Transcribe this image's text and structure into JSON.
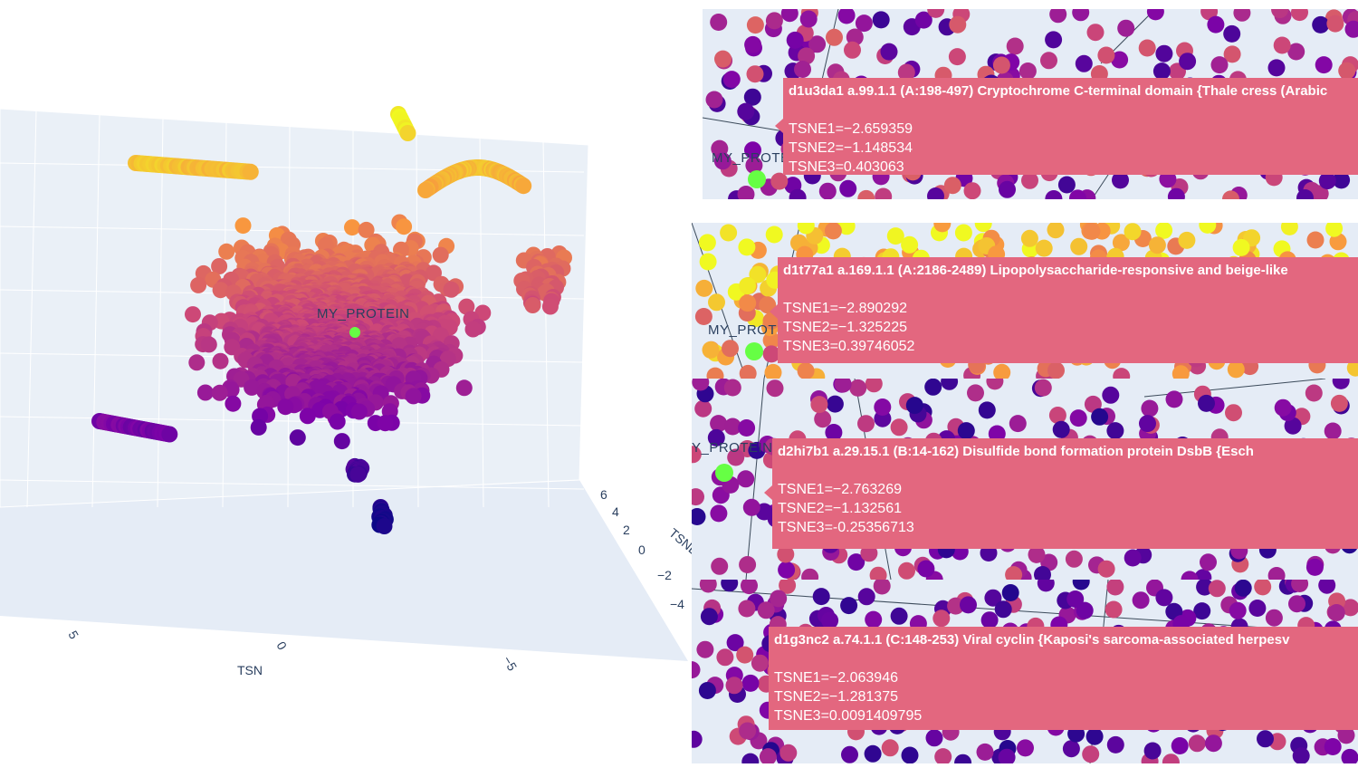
{
  "chart_data": [
    {
      "type": "scatter",
      "subtype": "scatter3d",
      "title": "",
      "axis_titles": {
        "y_partial": "TSNE",
        "x_partial": "TSN"
      },
      "axis_ticks": {
        "x": [
          "5",
          "0",
          "−5"
        ],
        "y": [
          "6",
          "4",
          "2",
          "0",
          "−2",
          "−4"
        ]
      },
      "colorscale": "plasma",
      "highlight": {
        "label": "MY_PROTEIN",
        "color": "#66ff44"
      },
      "series": [
        {
          "name": "",
          "points_approx": 3000
        }
      ]
    },
    {
      "type": "scatter",
      "subtype": "hover-detail",
      "panels": [
        {
          "label": "MY_PROTE",
          "title": "d1u3da1 a.99.1.1 (A:198-497) Cryptochrome C-terminal domain {Thale cress (Arabic",
          "lines": [
            "TSNE1=−2.659359",
            "TSNE2=−1.148534",
            "TSNE3=0.403063"
          ]
        },
        {
          "label": "MY_PROT",
          "title": "d1t77a1 a.169.1.1 (A:2186-2489) Lipopolysaccharide-responsive and beige-like",
          "lines": [
            "TSNE1=−2.890292",
            "TSNE2=−1.325225",
            "TSNE3=0.39746052"
          ]
        },
        {
          "label": "Y_PROTEIN",
          "title": "d2hi7b1 a.29.15.1 (B:14-162) Disulfide bond formation protein DsbB {Esch",
          "lines": [
            "TSNE1=−2.763269",
            "TSNE2=−1.132561",
            "TSNE3=-0.25356713"
          ]
        },
        {
          "label": "",
          "title": "d1g3nc2 a.74.1.1 (C:148-253) Viral cyclin {Kaposi's sarcoma-associated herpesv",
          "lines": [
            "TSNE1=−2.063946",
            "TSNE2=−1.281375",
            "TSNE3=0.0091409795"
          ]
        }
      ]
    }
  ]
}
